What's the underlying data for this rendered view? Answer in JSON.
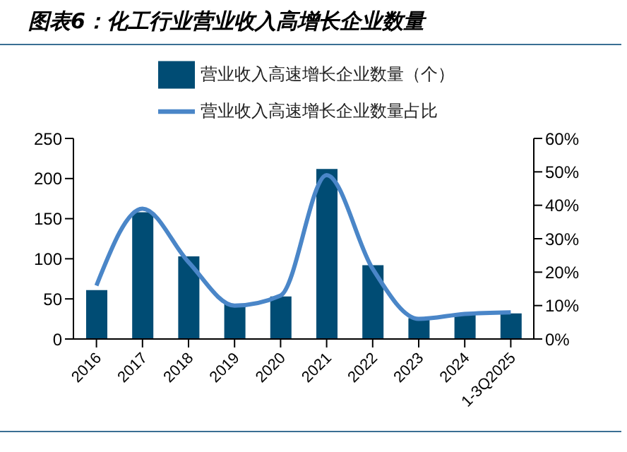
{
  "chart_data": {
    "type": "bar",
    "title": "图表6：化工行业营业收入高增长企业数量",
    "categories": [
      "2016",
      "2017",
      "2018",
      "2019",
      "2020",
      "2021",
      "2022",
      "2023",
      "2024",
      "1-3Q2025"
    ],
    "series": [
      {
        "name": "营业收入高速增长企业数量（个）",
        "color": "#004c74",
        "values": [
          61,
          158,
          103,
          44,
          53,
          212,
          92,
          26,
          31,
          32
        ]
      },
      {
        "name": "营业收入高速增长企业数量占比",
        "type": "line",
        "axis": "y2",
        "color": "#4a86c8",
        "values": [
          16,
          39,
          23,
          10,
          13,
          49,
          21,
          6,
          7.5,
          8
        ]
      }
    ],
    "ylim": [
      0,
      250
    ],
    "yticks": [
      0,
      50,
      100,
      150,
      200,
      250
    ],
    "y2lim": [
      0,
      60
    ],
    "y2ticks": [
      {
        "value": 0,
        "label": "0%"
      },
      {
        "value": 10,
        "label": "10%"
      },
      {
        "value": 20,
        "label": "20%"
      },
      {
        "value": 30,
        "label": "30%"
      },
      {
        "value": 40,
        "label": "40%"
      },
      {
        "value": 50,
        "label": "50%"
      },
      {
        "value": 60,
        "label": "60%"
      }
    ],
    "legend": "top",
    "grid": false,
    "marker": "none",
    "line_style": "solid"
  }
}
